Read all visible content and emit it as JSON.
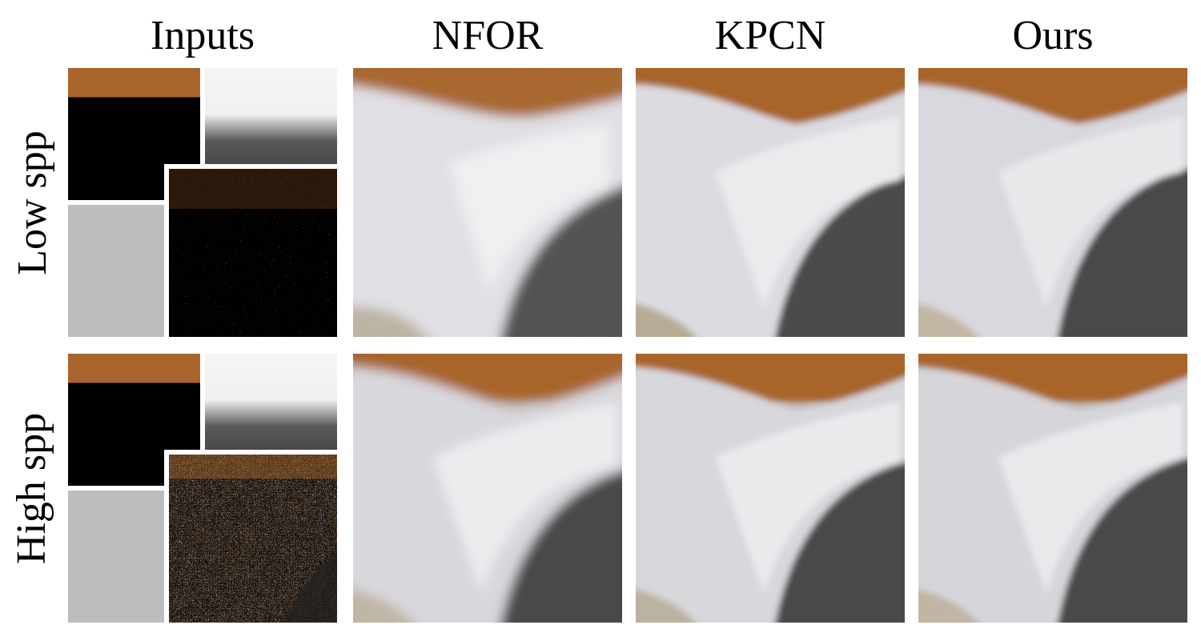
{
  "figure": {
    "column_headers": [
      "Inputs",
      "NFOR",
      "KPCN",
      "Ours"
    ],
    "row_labels": [
      "Low spp",
      "High spp"
    ]
  },
  "colors": {
    "brown": "#a8652b",
    "white_fabric": "#dcdbe0",
    "dark_cylinder": "#505050",
    "floor": "#c9bfae"
  }
}
